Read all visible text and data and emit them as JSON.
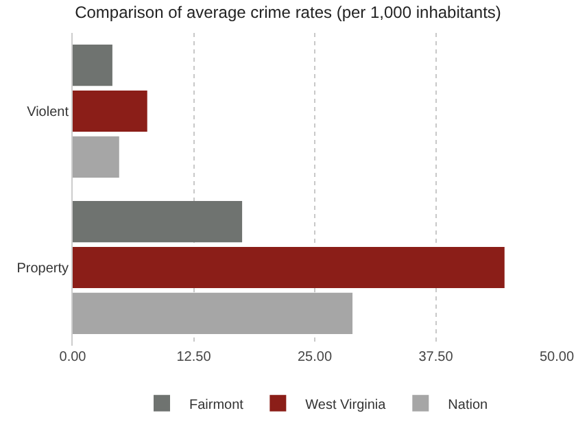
{
  "chart_data": {
    "type": "bar",
    "title": "Comparison of average crime rates (per 1,000 inhabitants)",
    "orientation": "horizontal",
    "categories": [
      "Violent",
      "Property"
    ],
    "series": [
      {
        "name": "Fairmont",
        "color": "#6f7370",
        "values": [
          4.1,
          17.5
        ]
      },
      {
        "name": "West Virginia",
        "color": "#8b1e18",
        "values": [
          7.7,
          44.6
        ]
      },
      {
        "name": "Nation",
        "color": "#a6a6a6",
        "values": [
          4.8,
          28.9
        ]
      }
    ],
    "xlim": [
      0,
      50
    ],
    "xticks": [
      {
        "value": 0,
        "label": "0.00"
      },
      {
        "value": 12.5,
        "label": "12.50"
      },
      {
        "value": 25,
        "label": "25.00"
      },
      {
        "value": 37.5,
        "label": "37.50"
      },
      {
        "value": 50,
        "label": "50.00"
      }
    ],
    "grid": "x",
    "legend": "bottom"
  }
}
